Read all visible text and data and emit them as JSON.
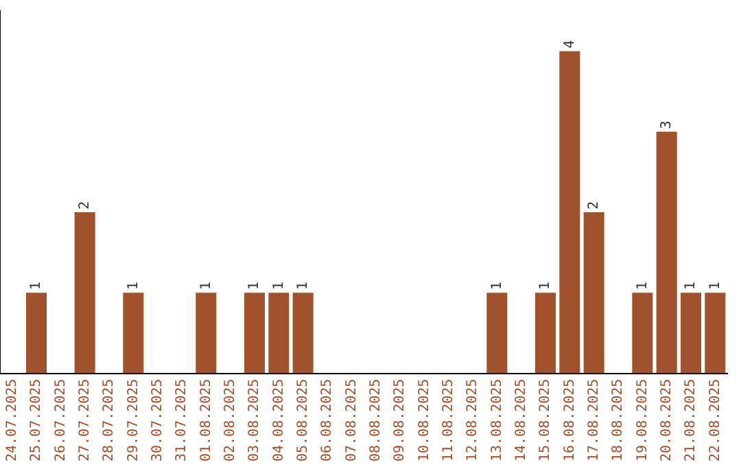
{
  "chart_data": {
    "type": "bar",
    "categories": [
      "24.07.2025",
      "25.07.2025",
      "26.07.2025",
      "27.07.2025",
      "28.07.2025",
      "29.07.2025",
      "30.07.2025",
      "31.07.2025",
      "01.08.2025",
      "02.08.2025",
      "03.08.2025",
      "04.08.2025",
      "05.08.2025",
      "06.08.2025",
      "07.08.2025",
      "08.08.2025",
      "09.08.2025",
      "10.08.2025",
      "11.08.2025",
      "12.08.2025",
      "13.08.2025",
      "14.08.2025",
      "15.08.2025",
      "16.08.2025",
      "17.08.2025",
      "18.08.2025",
      "19.08.2025",
      "20.08.2025",
      "21.08.2025",
      "22.08.2025"
    ],
    "values": [
      0,
      1,
      0,
      2,
      0,
      1,
      0,
      0,
      1,
      0,
      1,
      1,
      1,
      0,
      0,
      0,
      0,
      0,
      0,
      0,
      1,
      0,
      1,
      4,
      2,
      0,
      1,
      3,
      1,
      1
    ],
    "value_labels": [
      null,
      "1",
      null,
      "2",
      null,
      "1",
      null,
      null,
      "1",
      null,
      "1",
      "1",
      "1",
      null,
      null,
      null,
      null,
      null,
      null,
      null,
      "1",
      null,
      "1",
      "4",
      "2",
      null,
      "1",
      "3",
      "1",
      "1"
    ],
    "color": "#a0522d",
    "grid": false,
    "legend": false,
    "tick_labels": "x"
  }
}
